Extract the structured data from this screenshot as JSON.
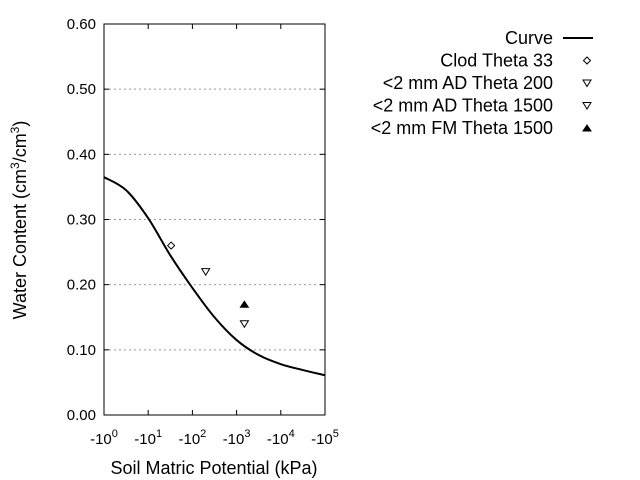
{
  "chart_data": {
    "type": "line",
    "xlabel": "Soil Matric Potential (kPa)",
    "ylabel": {
      "prefix": "Water Content (cm",
      "sup1": "3",
      "mid": "/cm",
      "sup2": "3",
      "suffix": ")"
    },
    "xscale": "log (negative)",
    "xlim": [
      1,
      100000
    ],
    "ylim": [
      0,
      0.6
    ],
    "x_ticks": [
      {
        "base": "-10",
        "exp": "0",
        "value": 1
      },
      {
        "base": "-10",
        "exp": "1",
        "value": 10
      },
      {
        "base": "-10",
        "exp": "2",
        "value": 100
      },
      {
        "base": "-10",
        "exp": "3",
        "value": 1000
      },
      {
        "base": "-10",
        "exp": "4",
        "value": 10000
      },
      {
        "base": "-10",
        "exp": "5",
        "value": 100000
      }
    ],
    "y_ticks": [
      "0.00",
      "0.10",
      "0.20",
      "0.30",
      "0.40",
      "0.50",
      "0.60"
    ],
    "grid": "horizontal dotted",
    "legend_position": "top-right outside",
    "series": [
      {
        "name": "Curve",
        "kind": "line",
        "color": "#000000",
        "x": [
          1,
          3.16,
          10,
          31.6,
          100,
          316,
          1000,
          3162,
          10000,
          31623,
          100000
        ],
        "y": [
          0.365,
          0.345,
          0.302,
          0.245,
          0.195,
          0.15,
          0.115,
          0.092,
          0.078,
          0.069,
          0.061
        ]
      },
      {
        "name": "Clod Theta 33",
        "kind": "marker",
        "marker": "diamond-open",
        "x": [
          33
        ],
        "y": [
          0.26
        ]
      },
      {
        "name": "<2 mm AD Theta 200",
        "kind": "marker",
        "marker": "triangle-down-open",
        "x": [
          200
        ],
        "y": [
          0.22
        ]
      },
      {
        "name": "<2 mm AD Theta 1500",
        "kind": "marker",
        "marker": "triangle-down-open",
        "x": [
          1500
        ],
        "y": [
          0.14
        ]
      },
      {
        "name": "<2 mm FM Theta 1500",
        "kind": "marker",
        "marker": "triangle-up-filled",
        "x": [
          1500
        ],
        "y": [
          0.17
        ]
      }
    ]
  }
}
